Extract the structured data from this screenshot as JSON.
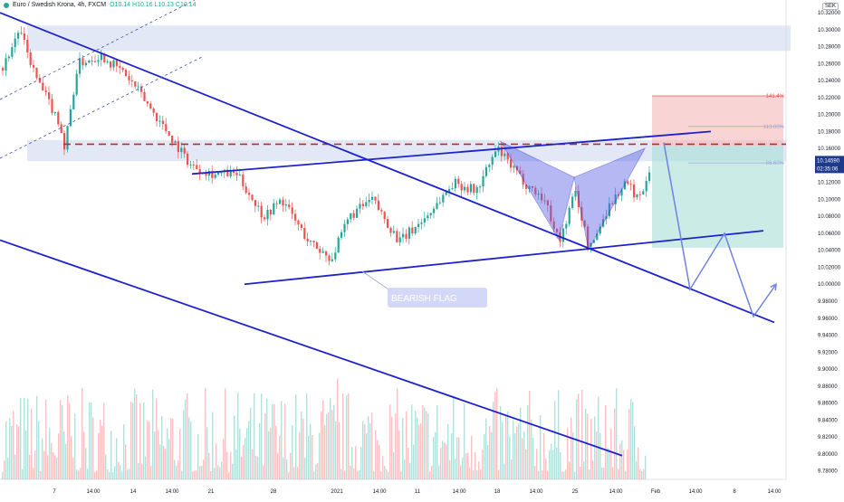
{
  "header": {
    "symbol": "Euro / Swedish Krona, 4h, FXCM",
    "values": "O10.14 H10.16 L10.13 C10.14"
  },
  "currency_badge": "SEK",
  "colors": {
    "up": "#26a69a",
    "down": "#ef5350",
    "pattern": "#1e22cc",
    "pattern_fill": "#5c64e6",
    "resistance": "#c62828",
    "zone": "#cfd8ef",
    "stop": "#f5b7b7",
    "target": "#a8ddd5",
    "projection": "#6f82e0"
  },
  "annotations": {
    "flag_label": "BEARISH FLAG",
    "fib_1414": "141.4%",
    "fib_1130": "113.00%",
    "fib_886": "88.60%"
  },
  "price_tag": {
    "price": "10.14590",
    "countdown": "02:35:06",
    "value": 10.1459
  },
  "chart_data": {
    "type": "candlestick",
    "title": "Euro / Swedish Krona, 4h, FXCM",
    "ylim": [
      9.77,
      10.335
    ],
    "y_ticks": [
      "10.32000",
      "10.30000",
      "10.28000",
      "10.26000",
      "10.24000",
      "10.22000",
      "10.20000",
      "10.18000",
      "10.16000",
      "10.14000",
      "10.12000",
      "10.10000",
      "10.08000",
      "10.06000",
      "10.04000",
      "10.02000",
      "10.00000",
      "9.98000",
      "9.96000",
      "9.94000",
      "9.92000",
      "9.90000",
      "9.88000",
      "9.86000",
      "9.84000",
      "9.82000",
      "9.80000",
      "9.78000"
    ],
    "x_labels": [
      "7",
      "14:00",
      "14",
      "14:00",
      "21",
      "28",
      "2021",
      "14:00",
      "11",
      "14:00",
      "18",
      "14:00",
      "25",
      "14:00",
      "Feb",
      "14:00",
      "8",
      "14:00"
    ],
    "price_path": [
      [
        0,
        10.25
      ],
      [
        20,
        10.3
      ],
      [
        40,
        10.24
      ],
      [
        65,
        10.19
      ],
      [
        70,
        10.16
      ],
      [
        85,
        10.26
      ],
      [
        110,
        10.27
      ],
      [
        135,
        10.25
      ],
      [
        150,
        10.23
      ],
      [
        170,
        10.2
      ],
      [
        210,
        10.14
      ],
      [
        235,
        10.13
      ],
      [
        260,
        10.13
      ],
      [
        290,
        10.08
      ],
      [
        310,
        10.1
      ],
      [
        340,
        10.05
      ],
      [
        365,
        10.03
      ],
      [
        385,
        10.08
      ],
      [
        410,
        10.1
      ],
      [
        440,
        10.05
      ],
      [
        470,
        10.08
      ],
      [
        500,
        10.12
      ],
      [
        525,
        10.11
      ],
      [
        548,
        10.16
      ],
      [
        562,
        10.14
      ],
      [
        578,
        10.12
      ],
      [
        600,
        10.1
      ],
      [
        617,
        10.05
      ],
      [
        634,
        10.11
      ],
      [
        650,
        10.04
      ],
      [
        670,
        10.09
      ],
      [
        690,
        10.12
      ],
      [
        705,
        10.1
      ],
      [
        717,
        10.14
      ]
    ],
    "resistance_level": 10.165,
    "supply_zone": [
      10.275,
      10.305
    ],
    "resistance_zone": [
      10.145,
      10.17
    ],
    "harmonic_pattern": {
      "X": [
        553,
        10.168
      ],
      "A": [
        617,
        10.053
      ],
      "B": [
        634,
        10.126
      ],
      "C": [
        650,
        10.041
      ],
      "D": [
        712,
        10.16
      ]
    },
    "trendlines": [
      {
        "name": "channel-top",
        "from": [
          0,
          10.32
        ],
        "to": [
          855,
          9.955
        ]
      },
      {
        "name": "channel-bottom",
        "from": [
          0,
          10.052
        ],
        "to": [
          687,
          9.798
        ]
      },
      {
        "name": "flag-top",
        "from": [
          212,
          10.13
        ],
        "to": [
          785,
          10.18
        ]
      },
      {
        "name": "flag-bottom",
        "from": [
          270,
          10.0
        ],
        "to": [
          843,
          10.063
        ]
      }
    ],
    "projection": [
      [
        733,
        10.167
      ],
      [
        762,
        9.994
      ],
      [
        800,
        10.06
      ],
      [
        832,
        9.962
      ],
      [
        857,
        10.0
      ]
    ],
    "position": {
      "x_range": [
        720,
        865
      ],
      "entry": 10.163,
      "stop": 10.222,
      "target": 10.043,
      "fib_right": 10.186
    },
    "volume_scale": 0.35
  }
}
